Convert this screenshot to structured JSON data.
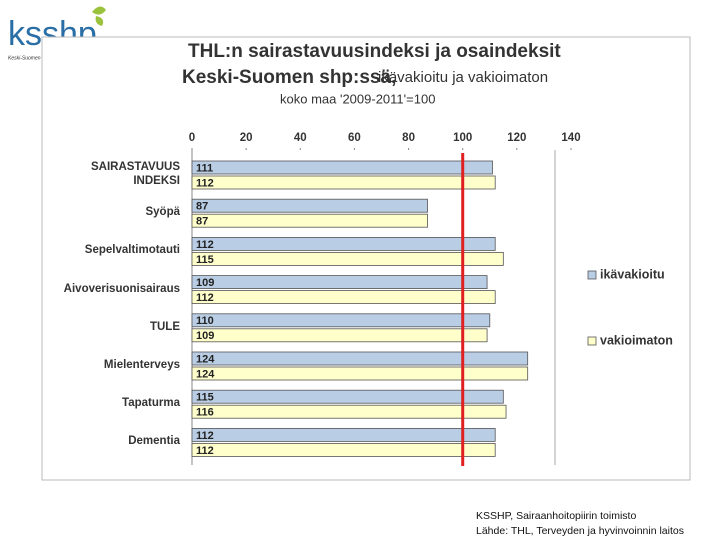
{
  "logo": {
    "text": "ksshp",
    "tagline": "Keski-Suomen sairaanhoitopiiri"
  },
  "footer": [
    "KSSHP, Sairaanhoitopiirin toimisto",
    "Lähde:  THL, Terveyden ja hyvinvoinnin laitos"
  ],
  "chart_data": {
    "type": "hbar",
    "title": "THL:n sairastavuusindeksi ja osaindeksit",
    "subtitle_bold": "Keski-Suomen shp:ssä,",
    "subtitle": "ikävakioitu ja vakioimaton",
    "note": "koko maa '2009-2011'=100",
    "categories": [
      "SAIRASTAVUUS\nINDEKSI",
      "Syöpä",
      "Sepelvaltimotauti",
      "Aivoverisuonisairaus",
      "TULE",
      "Mielenterveys",
      "Tapaturma",
      "Dementia"
    ],
    "series": [
      {
        "name": "ikävakioitu",
        "color": "#b9cde5",
        "values": [
          111,
          87,
          112,
          109,
          110,
          124,
          115,
          112
        ]
      },
      {
        "name": "vakioimaton",
        "color": "#ffffcc",
        "values": [
          112,
          87,
          115,
          112,
          109,
          124,
          116,
          112
        ]
      }
    ],
    "xlim": [
      0,
      140
    ],
    "xticks": [
      0,
      20,
      40,
      60,
      80,
      100,
      120,
      140
    ],
    "reference_line": 100,
    "reference_color": "#e02020",
    "legend": "right"
  }
}
